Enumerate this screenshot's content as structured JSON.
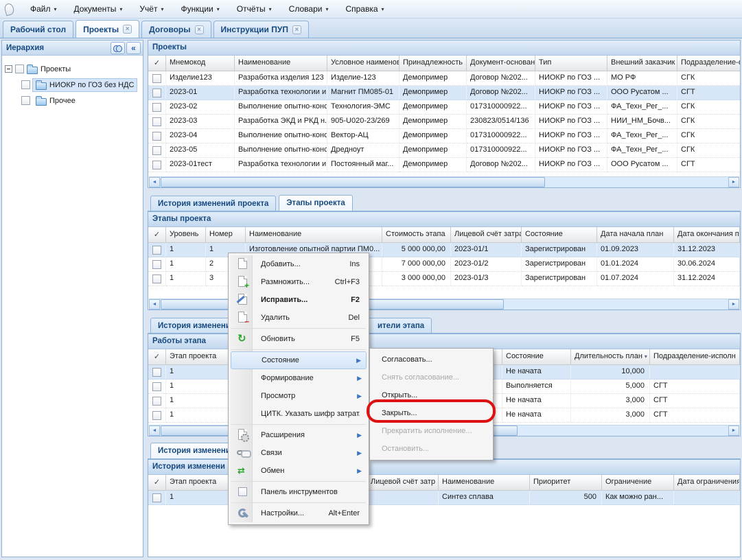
{
  "menu_bar": {
    "items": [
      "Файл",
      "Документы",
      "Учёт",
      "Функции",
      "Отчёты",
      "Словари",
      "Справка"
    ]
  },
  "main_tabs": [
    {
      "label": "Рабочий стол",
      "active": false,
      "closable": false
    },
    {
      "label": "Проекты",
      "active": true,
      "closable": true
    },
    {
      "label": "Договоры",
      "active": false,
      "closable": true
    },
    {
      "label": "Инструкции ПУП",
      "active": false,
      "closable": true
    }
  ],
  "sidebar": {
    "title": "Иерархия",
    "root": "Проекты",
    "children": [
      {
        "label": "НИОКР по ГОЗ без НДС",
        "selected": true
      },
      {
        "label": "Прочее",
        "selected": false
      }
    ]
  },
  "projects": {
    "title": "Проекты",
    "columns": [
      "✓",
      "Мнемокод",
      "Наименование",
      "Условное наименова",
      "Принадлежность",
      "Документ-основан",
      "Тип",
      "Внешний заказчик",
      "Подразделение-от"
    ],
    "rows": [
      [
        "Изделие123",
        "Разработка изделия 123",
        "Изделие-123",
        "Демопример",
        "Договор №202...",
        "НИОКР по ГОЗ ...",
        "МО РФ",
        "СГК"
      ],
      [
        "2023-01",
        "Разработка технологии и...",
        "Магнит ПМ085-01",
        "Демопример",
        "Договор №202...",
        "НИОКР по ГОЗ ...",
        "ООО Русатом ...",
        "СГТ"
      ],
      [
        "2023-02",
        "Выполнение опытно-конс...",
        "Технология-ЭМС",
        "Демопример",
        "017310000922...",
        "НИОКР по ГОЗ ...",
        "ФА_Техн_Рег_...",
        "СГК"
      ],
      [
        "2023-03",
        "Разработка ЭКД и РКД н...",
        "905-U020-23/269",
        "Демопример",
        "230823/0514/136",
        "НИОКР по ГОЗ ...",
        "НИИ_НМ_Бочв...",
        "СГК"
      ],
      [
        "2023-04",
        "Выполнение опытно-конс...",
        "Вектор-АЦ",
        "Демопример",
        "017310000922...",
        "НИОКР по ГОЗ ...",
        "ФА_Техн_Рег_...",
        "СГК"
      ],
      [
        "2023-05",
        "Выполнение опытно-конс...",
        "Дредноут",
        "Демопример",
        "017310000922...",
        "НИОКР по ГОЗ ...",
        "ФА_Техн_Рег_...",
        "СГК"
      ],
      [
        "2023-01тест",
        "Разработка технологии и...",
        "Постоянный маг...",
        "Демопример",
        "Договор №202...",
        "НИОКР по ГОЗ ...",
        "ООО Русатом ...",
        "СГТ"
      ]
    ]
  },
  "stages_tabs": {
    "history": "История изменений проекта",
    "stages": "Этапы проекта"
  },
  "stages": {
    "title": "Этапы проекта",
    "columns": [
      "✓",
      "Уровень",
      "Номер",
      "Наименование",
      "Стоимость этапа",
      "Лицевой счёт затрат.",
      "Состояние",
      "Дата начала план",
      "Дата окончания п"
    ],
    "rows": [
      [
        "1",
        "1",
        "Изготовление опытной партии ПМ0...",
        "5 000 000,00",
        "2023-01/1",
        "Зарегистрирован",
        "01.09.2023",
        "31.12.2023"
      ],
      [
        "1",
        "2",
        "т...",
        "7 000 000,00",
        "2023-01/2",
        "Зарегистрирован",
        "01.01.2024",
        "30.06.2024"
      ],
      [
        "1",
        "3",
        "...",
        "3 000 000,00",
        "2023-01/3",
        "Зарегистрирован",
        "01.07.2024",
        "31.12.2024"
      ]
    ]
  },
  "works_tabs": {
    "history": "История изменени",
    "executors": "ители этапа"
  },
  "works": {
    "title": "Работы этапа",
    "columns": [
      "✓",
      "Этап проекта",
      "",
      "Состояние",
      "Длительность план",
      "Подразделение-исполн"
    ],
    "rows": [
      [
        "1",
        "",
        "Не начата",
        "10,000",
        ""
      ],
      [
        "1",
        "",
        "Выполняется",
        "5,000",
        "СГТ"
      ],
      [
        "1",
        "",
        "Не начата",
        "3,000",
        "СГТ"
      ],
      [
        "1",
        "",
        "Не начата",
        "3,000",
        "СГТ"
      ]
    ]
  },
  "history_tabs": {
    "history": "История изменени"
  },
  "history": {
    "title": "История изменени",
    "columns": [
      "✓",
      "Этап проекта",
      "",
      "Лицевой счёт затр",
      "Наименование",
      "Приоритет",
      "Ограничение",
      "Дата ограничения"
    ],
    "rows": [
      [
        "1",
        "",
        "",
        "Синтез сплава",
        "500",
        "Как можно ран...",
        ""
      ]
    ]
  },
  "context_menu": {
    "items": [
      {
        "label": "Добавить...",
        "shortcut": "Ins",
        "icon": "page-icon"
      },
      {
        "label": "Размножить...",
        "shortcut": "Ctrl+F3",
        "icon": "page-plus-icon"
      },
      {
        "label": "Исправить...",
        "shortcut": "F2",
        "icon": "page-edit-icon",
        "bold": true
      },
      {
        "label": "Удалить",
        "shortcut": "Del",
        "icon": "page-minus-icon"
      },
      {
        "separator": true
      },
      {
        "label": "Обновить",
        "shortcut": "F5",
        "icon": "refresh-icon"
      },
      {
        "separator": true
      },
      {
        "label": "Состояние",
        "submenu": true,
        "highlighted": true
      },
      {
        "label": "Формирование",
        "submenu": true
      },
      {
        "label": "Просмотр",
        "submenu": true
      },
      {
        "label": "ЦИТК. Указать шифр затрат..."
      },
      {
        "separator": true
      },
      {
        "label": "Расширения",
        "submenu": true,
        "icon": "page-gear-icon"
      },
      {
        "label": "Связи",
        "submenu": true,
        "icon": "link-icon"
      },
      {
        "label": "Обмен",
        "submenu": true,
        "icon": "exchange-icon"
      },
      {
        "separator": true
      },
      {
        "label": "Панель инструментов",
        "icon": "checkbox-icon"
      },
      {
        "separator": true
      },
      {
        "label": "Настройки...",
        "shortcut": "Alt+Enter",
        "icon": "wrench-icon"
      }
    ]
  },
  "submenu": {
    "items": [
      {
        "label": "Согласовать..."
      },
      {
        "label": "Снять согласование...",
        "disabled": true
      },
      {
        "label": "Открыть..."
      },
      {
        "label": "Закрыть...",
        "annotated": true
      },
      {
        "label": "Прекратить исполнение...",
        "disabled": true
      },
      {
        "label": "Остановить...",
        "disabled": true
      }
    ]
  },
  "annotation": {
    "color": "#dd1111"
  },
  "icons": {
    "scroll_left": "◄",
    "scroll_right": "►",
    "menu_chevron": "▾",
    "close": "×",
    "collapse": "«",
    "submenu_arrow": "▶",
    "refresh": "↻",
    "exchange": "⇄",
    "sort_desc": "▾"
  }
}
